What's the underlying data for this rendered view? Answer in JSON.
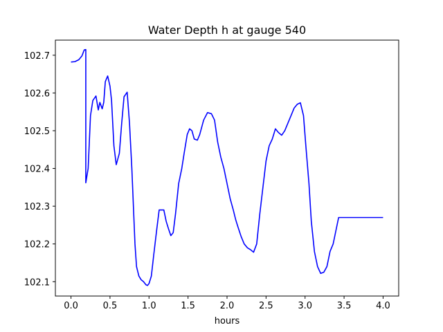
{
  "chart_data": {
    "type": "line",
    "title": "Water Depth h at gauge 540",
    "xlabel": "hours",
    "ylabel": "",
    "xlim": [
      -0.2,
      4.2
    ],
    "ylim": [
      102.062,
      102.74
    ],
    "xticks": [
      0.0,
      0.5,
      1.0,
      1.5,
      2.0,
      2.5,
      3.0,
      3.5,
      4.0
    ],
    "xtick_labels": [
      "0.0",
      "0.5",
      "1.0",
      "1.5",
      "2.0",
      "2.5",
      "3.0",
      "3.5",
      "4.0"
    ],
    "yticks": [
      102.1,
      102.2,
      102.3,
      102.4,
      102.5,
      102.6,
      102.7
    ],
    "ytick_labels": [
      "102.1",
      "102.2",
      "102.3",
      "102.4",
      "102.5",
      "102.6",
      "102.7"
    ],
    "grid": false,
    "series": [
      {
        "color": "#0000ff",
        "x": [
          0.0,
          0.05,
          0.1,
          0.14,
          0.17,
          0.19,
          0.19,
          0.22,
          0.25,
          0.28,
          0.32,
          0.35,
          0.37,
          0.4,
          0.42,
          0.44,
          0.47,
          0.5,
          0.52,
          0.55,
          0.58,
          0.62,
          0.65,
          0.68,
          0.72,
          0.75,
          0.78,
          0.82,
          0.84,
          0.87,
          0.9,
          0.93,
          0.96,
          0.98,
          1.0,
          1.03,
          1.06,
          1.1,
          1.13,
          1.16,
          1.19,
          1.22,
          1.25,
          1.28,
          1.31,
          1.34,
          1.38,
          1.42,
          1.45,
          1.49,
          1.52,
          1.55,
          1.58,
          1.62,
          1.65,
          1.7,
          1.75,
          1.8,
          1.84,
          1.88,
          1.92,
          1.96,
          2.0,
          2.04,
          2.08,
          2.11,
          2.14,
          2.18,
          2.22,
          2.26,
          2.3,
          2.34,
          2.38,
          2.42,
          2.46,
          2.5,
          2.54,
          2.58,
          2.62,
          2.66,
          2.7,
          2.74,
          2.78,
          2.82,
          2.86,
          2.9,
          2.94,
          2.98,
          3.01,
          3.05,
          3.08,
          3.12,
          3.16,
          3.2,
          3.24,
          3.28,
          3.32,
          3.36,
          3.4,
          3.43,
          3.47,
          3.5,
          3.54,
          3.58,
          3.62,
          3.66,
          3.7,
          3.74,
          3.78,
          3.82,
          3.86,
          3.9,
          3.94,
          3.98,
          4.0
        ],
        "y": [
          102.682,
          102.683,
          102.688,
          102.698,
          102.714,
          102.715,
          102.362,
          102.4,
          102.54,
          102.58,
          102.592,
          102.555,
          102.575,
          102.558,
          102.575,
          102.63,
          102.645,
          102.618,
          102.58,
          102.46,
          102.41,
          102.44,
          102.52,
          102.59,
          102.602,
          102.52,
          102.4,
          102.2,
          102.14,
          102.115,
          102.105,
          102.1,
          102.092,
          102.09,
          102.095,
          102.115,
          102.17,
          102.24,
          102.29,
          102.29,
          102.29,
          102.26,
          102.24,
          102.222,
          102.23,
          102.28,
          102.36,
          102.4,
          102.44,
          102.49,
          102.505,
          102.5,
          102.478,
          102.475,
          102.49,
          102.528,
          102.548,
          102.545,
          102.528,
          102.47,
          102.43,
          102.4,
          102.36,
          102.32,
          102.29,
          102.265,
          102.245,
          102.22,
          102.2,
          102.19,
          102.185,
          102.178,
          102.2,
          102.28,
          102.35,
          102.42,
          102.46,
          102.478,
          102.505,
          102.495,
          102.488,
          102.5,
          102.52,
          102.54,
          102.56,
          102.57,
          102.574,
          102.54,
          102.46,
          102.36,
          102.26,
          102.18,
          102.14,
          102.122,
          102.125,
          102.14,
          102.18,
          102.2,
          102.24,
          102.27,
          102.27,
          102.27,
          102.27,
          102.27,
          102.27,
          102.27,
          102.27,
          102.27,
          102.27,
          102.27,
          102.27,
          102.27,
          102.27,
          102.27,
          102.27
        ]
      }
    ]
  }
}
